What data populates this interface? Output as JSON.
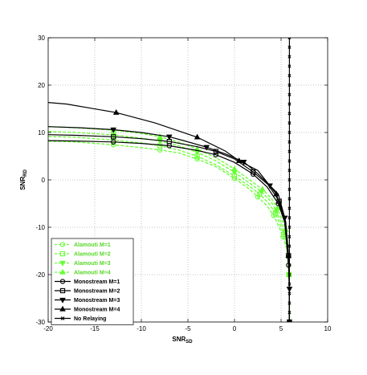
{
  "chart_data": {
    "type": "line",
    "title": "",
    "xlabel": "SNR",
    "xlabel_sub": "SD",
    "ylabel": "SNR",
    "ylabel_sub": "RD",
    "xlim": [
      -20,
      10
    ],
    "ylim": [
      -30,
      30
    ],
    "xticks": [
      -20,
      -15,
      -10,
      -5,
      0,
      5,
      10
    ],
    "yticks": [
      -30,
      -20,
      -10,
      0,
      10,
      20,
      30
    ],
    "grid": true,
    "legend_position": "bottom-left",
    "series": [
      {
        "name": "Alamouti M=1",
        "color": "#66ff33",
        "style": "dashed",
        "marker": "circle",
        "x": [
          -21.0,
          -17.0,
          -13.0,
          -10.0,
          -8.0,
          -6.0,
          -4.0,
          -2.0,
          0.0,
          1.5,
          2.5,
          3.5,
          4.2,
          4.8,
          5.2,
          5.6,
          5.85,
          5.9,
          5.9
        ],
        "y": [
          8.2,
          8.0,
          7.4,
          6.8,
          6.3,
          5.7,
          4.4,
          2.8,
          0.3,
          -1.8,
          -3.6,
          -5.5,
          -7.5,
          -10.0,
          -12.0,
          -14.5,
          -20.0,
          -25.0,
          -30.0
        ]
      },
      {
        "name": "Alamouti M=2",
        "color": "#66ff33",
        "style": "dashed",
        "marker": "square",
        "x": [
          -21.0,
          -17.0,
          -13.0,
          -10.0,
          -8.0,
          -6.0,
          -4.0,
          -2.0,
          0.0,
          1.5,
          2.7,
          3.7,
          4.4,
          4.9,
          5.3,
          5.6,
          5.85,
          5.9,
          5.9
        ],
        "y": [
          9.2,
          9.0,
          8.4,
          7.8,
          7.2,
          6.3,
          5.0,
          3.2,
          0.8,
          -1.2,
          -3.0,
          -5.0,
          -7.0,
          -9.5,
          -11.5,
          -14.0,
          -20.0,
          -25.0,
          -30.0
        ]
      },
      {
        "name": "Alamouti M=3",
        "color": "#66ff33",
        "style": "dashed",
        "marker": "triangle-down",
        "x": [
          -21.0,
          -17.0,
          -13.0,
          -10.0,
          -8.0,
          -6.0,
          -4.0,
          -2.0,
          0.0,
          1.5,
          2.9,
          3.9,
          4.5,
          5.0,
          5.4,
          5.7,
          5.85,
          5.9,
          5.9
        ],
        "y": [
          10.3,
          10.0,
          9.5,
          8.8,
          8.2,
          7.2,
          5.8,
          4.0,
          1.6,
          -0.5,
          -2.5,
          -4.5,
          -6.5,
          -9.0,
          -11.0,
          -13.5,
          -20.0,
          -25.0,
          -30.0
        ]
      },
      {
        "name": "Alamouti M=4",
        "color": "#66ff33",
        "style": "dashed",
        "marker": "triangle-up",
        "x": [
          -21.0,
          -17.0,
          -13.0,
          -10.0,
          -8.0,
          -6.0,
          -4.0,
          -2.0,
          0.0,
          1.5,
          3.0,
          4.0,
          4.6,
          5.1,
          5.5,
          5.7,
          5.85,
          5.9,
          5.9
        ],
        "y": [
          11.3,
          11.0,
          10.5,
          9.8,
          9.1,
          8.0,
          6.5,
          4.7,
          2.3,
          0.2,
          -2.0,
          -4.0,
          -6.0,
          -8.5,
          -10.5,
          -13.0,
          -20.0,
          -25.0,
          -30.0
        ]
      },
      {
        "name": "Monostream M=1",
        "color": "#000000",
        "style": "solid",
        "marker": "circle",
        "x": [
          -21.0,
          -17.0,
          -13.0,
          -10.0,
          -7.0,
          -4.0,
          -2.0,
          0.0,
          2.0,
          3.5,
          4.7,
          5.4,
          5.8,
          5.9,
          5.9
        ],
        "y": [
          8.3,
          8.2,
          8.0,
          7.7,
          7.2,
          6.2,
          5.3,
          3.7,
          1.2,
          -1.5,
          -5.0,
          -9.0,
          -18.0,
          -24.0,
          -30.0
        ]
      },
      {
        "name": "Monostream M=2",
        "color": "#000000",
        "style": "solid",
        "marker": "square",
        "x": [
          -21.0,
          -17.0,
          -13.0,
          -10.0,
          -7.0,
          -4.0,
          -2.0,
          0.0,
          2.0,
          3.6,
          4.8,
          5.5,
          5.8,
          5.9,
          5.9
        ],
        "y": [
          9.6,
          9.4,
          9.1,
          8.7,
          8.1,
          7.0,
          6.0,
          4.4,
          1.7,
          -1.0,
          -4.5,
          -8.8,
          -16.0,
          -23.0,
          -30.0
        ]
      },
      {
        "name": "Monostream M=3",
        "color": "#000000",
        "style": "solid",
        "marker": "triangle-down",
        "x": [
          -21.0,
          -16.5,
          -13.0,
          -10.0,
          -7.0,
          -5.5,
          -3.0,
          -1.0,
          1.0,
          2.5,
          3.8,
          4.7,
          5.4,
          5.8,
          5.9,
          5.9
        ],
        "y": [
          11.3,
          11.0,
          10.6,
          10.0,
          9.1,
          8.3,
          6.9,
          5.5,
          3.8,
          1.3,
          -1.2,
          -3.0,
          -8.0,
          -16.0,
          -23.0,
          -30.0
        ]
      },
      {
        "name": "Monostream M=4",
        "color": "#000000",
        "style": "solid",
        "marker": "triangle-up",
        "x": [
          -21.0,
          -18.0,
          -12.7,
          -8.5,
          -4.0,
          -1.0,
          0.5,
          2.5,
          4.5,
          5.4,
          5.8,
          5.9,
          5.9
        ],
        "y": [
          16.5,
          16.0,
          14.2,
          12.0,
          9.0,
          6.1,
          4.0,
          2.0,
          -3.0,
          -9.0,
          -16.0,
          -23.0,
          -30.0
        ]
      },
      {
        "name": "No Relaying",
        "color": "#000000",
        "style": "solid",
        "marker": "x",
        "x": [
          5.9,
          5.9,
          5.9,
          5.9,
          5.9,
          5.9,
          5.9,
          5.9,
          5.9,
          5.9,
          5.9,
          5.9,
          5.9,
          5.9,
          5.9,
          5.9,
          5.9,
          5.9,
          5.9,
          5.9,
          5.9,
          5.9,
          5.9,
          5.9,
          5.9,
          5.9,
          5.9,
          5.9,
          5.9,
          5.9,
          5.9
        ],
        "y": [
          30,
          28,
          26,
          24,
          22,
          20,
          18,
          16,
          14,
          12,
          10,
          8,
          6,
          4,
          2,
          0,
          -2,
          -4,
          -6,
          -8,
          -10,
          -12,
          -14,
          -16,
          -18,
          -20,
          -22,
          -24,
          -26,
          -28,
          -30
        ]
      }
    ]
  }
}
